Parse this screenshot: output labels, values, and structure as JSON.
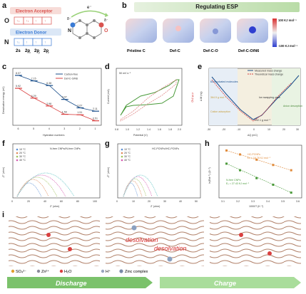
{
  "panel_letters": [
    "a",
    "b",
    "c",
    "d",
    "e",
    "f",
    "g",
    "h",
    "i"
  ],
  "a": {
    "acceptor_label": "Electron Acceptor",
    "donor_label": "Electron Donor",
    "o_label": "O",
    "n_label": "N",
    "orbitals_o": [
      "2s",
      "2p",
      "2p",
      "2p"
    ],
    "orbitals_n": [
      "2s",
      "2p",
      "2p",
      "2p"
    ],
    "orbital_subs": [
      "",
      "x",
      "y",
      "z"
    ],
    "electron": "e⁻",
    "delta_minus": "δ⁻"
  },
  "b": {
    "title": "Regulating ESP",
    "labels": [
      "Pristine C",
      "Def-C",
      "Def-C-O",
      "Def-C-O/N6"
    ],
    "scale_max": "100 KJ mol⁻¹",
    "scale_min": "-100 KJ mol⁻¹"
  },
  "c": {
    "ylabel": "Desolvation energy (eV)",
    "xlabel": "Hydration numbers",
    "legend": [
      "Carbon-free",
      "Def-C-O/N6"
    ],
    "chart_data": {
      "type": "line",
      "categories": [
        "6",
        "5",
        "4",
        "3",
        "2",
        "1"
      ],
      "series": [
        {
          "name": "Carbon-free",
          "values": [
            8.07,
            7.15,
            6.38,
            4.07,
            2.67,
            2.11
          ]
        },
        {
          "name": "Def-C-O/N6",
          "values": [
            5.92,
            4.29,
            2.98,
            1.59,
            1.51,
            0.51
          ]
        }
      ],
      "ylim": [
        0,
        9
      ]
    }
  },
  "d": {
    "scan": "50 mV s⁻¹",
    "xlabel": "Potential (V)",
    "ylabel": "Current (mA)",
    "ylabel2": "Δ M (ng)",
    "xticks": [
      "0.8",
      "1.0",
      "1.2",
      "1.4",
      "1.6",
      "1.8",
      "2.0"
    ]
  },
  "e": {
    "legend": [
      "Measured mass change",
      "Theoretical mass change"
    ],
    "xlabel": "ΔQ (mC)",
    "ylabel": "Δ M (ng)",
    "ann_left": "64.4 solvated molecules",
    "ann_free": "Ion swapping zone",
    "ann_val": "292.1 g mol⁻¹",
    "xticks": [
      "-30",
      "-20",
      "-10",
      "0",
      "10",
      "20",
      "30"
    ],
    "zone_left": "Cation adsorption",
    "zone_right": "Anion desorption",
    "mid_label": "364.5 g mol⁻¹"
  },
  "f": {
    "title": "N-free CNPs//N-free CNPs",
    "legend": [
      "10 °C",
      "20 °C",
      "30 °C",
      "40 °C",
      "50 °C"
    ],
    "xlabel": "Z' (ohm)",
    "ylabel": "-Z'' (ohm)",
    "xticks": [
      "0",
      "20",
      "40",
      "60",
      "80",
      "100"
    ]
  },
  "g": {
    "title": "HC-PCNFs//HC-PCNFs",
    "legend": [
      "10 °C",
      "20 °C",
      "30 °C",
      "40 °C",
      "50 °C"
    ],
    "xlabel": "Z' (ohm)",
    "ylabel": "-Z'' (ohm)",
    "xticks": [
      "0",
      "10",
      "20",
      "30",
      "40",
      "50"
    ]
  },
  "h": {
    "xlabel": "1000/T (K⁻¹)",
    "ylabel": "ln(Rct⁻¹) (Ω⁻¹)",
    "series1_label": "HC-PCNFs",
    "series1_ea": "Eₐ = 16.78 KJ mol⁻¹",
    "series2_label": "N-free CNPs",
    "series2_ea": "Eₐ = 27.43 KJ mol⁻¹",
    "xticks": [
      "3.1",
      "3.2",
      "3.3",
      "3.4",
      "3.5",
      "3.6"
    ],
    "chart_data": {
      "type": "scatter",
      "series": [
        {
          "name": "HC-PCNFs",
          "x": [
            3.1,
            3.19,
            3.3,
            3.41,
            3.53
          ],
          "y": [
            -2.6,
            -2.75,
            -2.95,
            -3.15,
            -3.35
          ]
        },
        {
          "name": "N-free CNPs",
          "x": [
            3.1,
            3.19,
            3.3,
            3.41,
            3.53
          ],
          "y": [
            -3.1,
            -3.35,
            -3.65,
            -3.9,
            -4.2
          ]
        }
      ]
    }
  },
  "i": {
    "desolvation": "desolvation",
    "legend": [
      "SO₄²⁻",
      "Zn²⁺",
      "H₂O",
      "H⁺",
      "Zinc complex"
    ],
    "discharge": "Discharge",
    "charge": "Charge"
  },
  "colors": {
    "acceptor": "#d9534f",
    "donor": "#3a7bd5",
    "series_black": "#1a4e8a",
    "series_red": "#d94040",
    "arrow_green": "#7bc26b",
    "eis": [
      "#5b8fd6",
      "#e08a5a",
      "#9fc25b",
      "#d65bb0",
      "#5bc2c2"
    ]
  }
}
